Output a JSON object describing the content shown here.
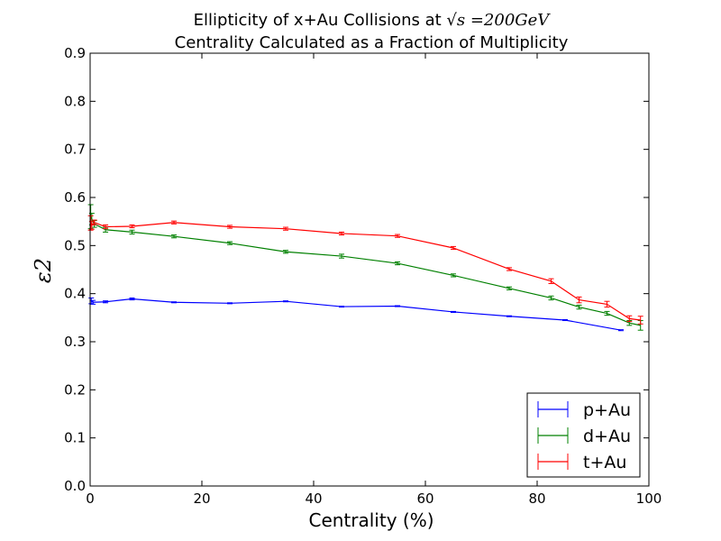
{
  "chart_data": {
    "type": "line",
    "title_line1_prefix": "Ellipticity of x+Au Collisions at ",
    "title_line1_math": "√s =200GeV",
    "title_line2": "Centrality Calculated as a Fraction of Multiplicity",
    "xlabel": "Centrality (%)",
    "ylabel": "ε2",
    "xlim": [
      0,
      100
    ],
    "ylim": [
      0.0,
      0.9
    ],
    "xticks": [
      0,
      20,
      40,
      60,
      80,
      100
    ],
    "yticks": [
      0.0,
      0.1,
      0.2,
      0.3,
      0.4,
      0.5,
      0.6,
      0.7,
      0.8,
      0.9
    ],
    "xtick_labels": [
      "0",
      "20",
      "40",
      "60",
      "80",
      "100"
    ],
    "ytick_labels": [
      "0.0",
      "0.1",
      "0.2",
      "0.3",
      "0.4",
      "0.5",
      "0.6",
      "0.7",
      "0.8",
      "0.9"
    ],
    "grid": false,
    "legend_position": "bottom-right",
    "series": [
      {
        "name": "p+Au",
        "color": "#0000ff",
        "x": [
          0.2,
          0.5,
          2.75,
          7.5,
          15,
          25,
          35,
          45,
          55,
          65,
          75,
          85,
          95
        ],
        "y": [
          0.385,
          0.382,
          0.383,
          0.389,
          0.382,
          0.38,
          0.384,
          0.373,
          0.374,
          0.362,
          0.353,
          0.345,
          0.324
        ],
        "err": [
          0.006,
          0.004,
          0.002,
          0.002,
          0.001,
          0.001,
          0.001,
          0.001,
          0.001,
          0.001,
          0.001,
          0.001,
          0.001
        ]
      },
      {
        "name": "d+Au",
        "color": "#008000",
        "x": [
          0.1,
          0.3,
          0.75,
          2.75,
          7.5,
          15,
          25,
          35,
          45,
          55,
          65,
          75,
          82.5,
          87.5,
          92.5,
          96.5,
          98.5
        ],
        "y": [
          0.56,
          0.555,
          0.545,
          0.533,
          0.528,
          0.519,
          0.505,
          0.487,
          0.478,
          0.463,
          0.438,
          0.411,
          0.391,
          0.372,
          0.359,
          0.339,
          0.334
        ],
        "err": [
          0.025,
          0.012,
          0.007,
          0.005,
          0.004,
          0.003,
          0.003,
          0.003,
          0.004,
          0.003,
          0.003,
          0.003,
          0.004,
          0.004,
          0.004,
          0.005,
          0.01
        ]
      },
      {
        "name": "t+Au",
        "color": "#ff0000",
        "x": [
          0.1,
          0.3,
          0.75,
          2.75,
          7.5,
          15,
          25,
          35,
          45,
          55,
          65,
          75,
          82.5,
          87.5,
          92.5,
          96.5,
          98.5
        ],
        "y": [
          0.547,
          0.542,
          0.548,
          0.539,
          0.54,
          0.548,
          0.539,
          0.535,
          0.525,
          0.52,
          0.495,
          0.451,
          0.426,
          0.387,
          0.378,
          0.348,
          0.345
        ],
        "err": [
          0.015,
          0.008,
          0.005,
          0.004,
          0.003,
          0.003,
          0.003,
          0.003,
          0.003,
          0.003,
          0.003,
          0.003,
          0.005,
          0.006,
          0.006,
          0.006,
          0.008
        ]
      }
    ]
  }
}
